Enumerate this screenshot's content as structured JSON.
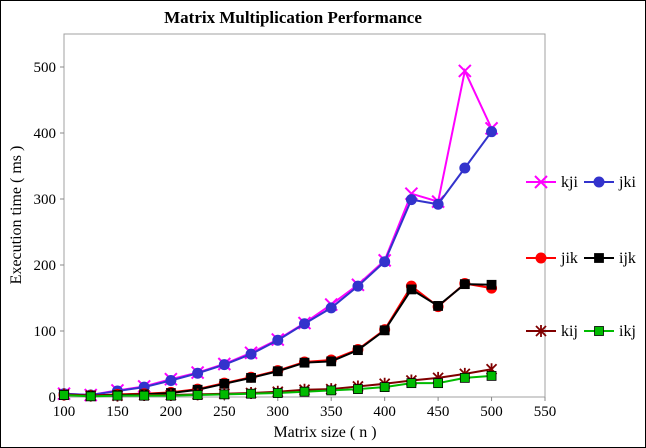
{
  "chart_data": {
    "type": "line",
    "title": "Matrix Multiplication Performance",
    "xlabel": "Matrix size ( n )",
    "ylabel": "Execution time ( ms )",
    "xlim": [
      100,
      550
    ],
    "ylim": [
      0,
      550
    ],
    "x_ticks": [
      "100",
      "150",
      "200",
      "250",
      "300",
      "350",
      "400",
      "450",
      "500",
      "550"
    ],
    "y_ticks": [
      "0",
      "100",
      "200",
      "300",
      "400",
      "500"
    ],
    "grid": false,
    "legend_position": "right",
    "x": [
      100,
      125,
      150,
      175,
      200,
      225,
      250,
      275,
      300,
      325,
      350,
      375,
      400,
      425,
      450,
      475,
      500
    ],
    "series": [
      {
        "name": "kji",
        "color": "#ff00ff",
        "marker": "x-cross",
        "values": [
          5,
          3,
          10,
          16,
          27,
          37,
          50,
          67,
          87,
          112,
          140,
          170,
          207,
          308,
          296,
          494,
          407
        ]
      },
      {
        "name": "jki",
        "color": "#3333cc",
        "marker": "circle",
        "values": [
          5,
          3,
          9,
          15,
          25,
          36,
          49,
          65,
          86,
          111,
          135,
          168,
          205,
          299,
          292,
          347,
          402
        ]
      },
      {
        "name": "jik",
        "color": "#ff0000",
        "marker": "circle",
        "values": [
          3,
          2,
          4,
          5,
          7,
          12,
          21,
          30,
          40,
          53,
          56,
          72,
          102,
          168,
          137,
          172,
          165
        ]
      },
      {
        "name": "ijk",
        "color": "#000000",
        "marker": "square",
        "values": [
          3,
          2,
          3,
          4,
          6,
          11,
          20,
          29,
          39,
          52,
          54,
          71,
          101,
          163,
          138,
          171,
          170
        ]
      },
      {
        "name": "kij",
        "color": "#800000",
        "marker": "star",
        "values": [
          4,
          2,
          2,
          3,
          3,
          4,
          5,
          6,
          8,
          11,
          12,
          16,
          20,
          25,
          29,
          35,
          42
        ]
      },
      {
        "name": "ikj",
        "color": "#00bb00",
        "marker": "square",
        "values": [
          3,
          1,
          2,
          2,
          2,
          3,
          4,
          5,
          6,
          8,
          10,
          12,
          15,
          21,
          21,
          29,
          32
        ]
      }
    ]
  }
}
